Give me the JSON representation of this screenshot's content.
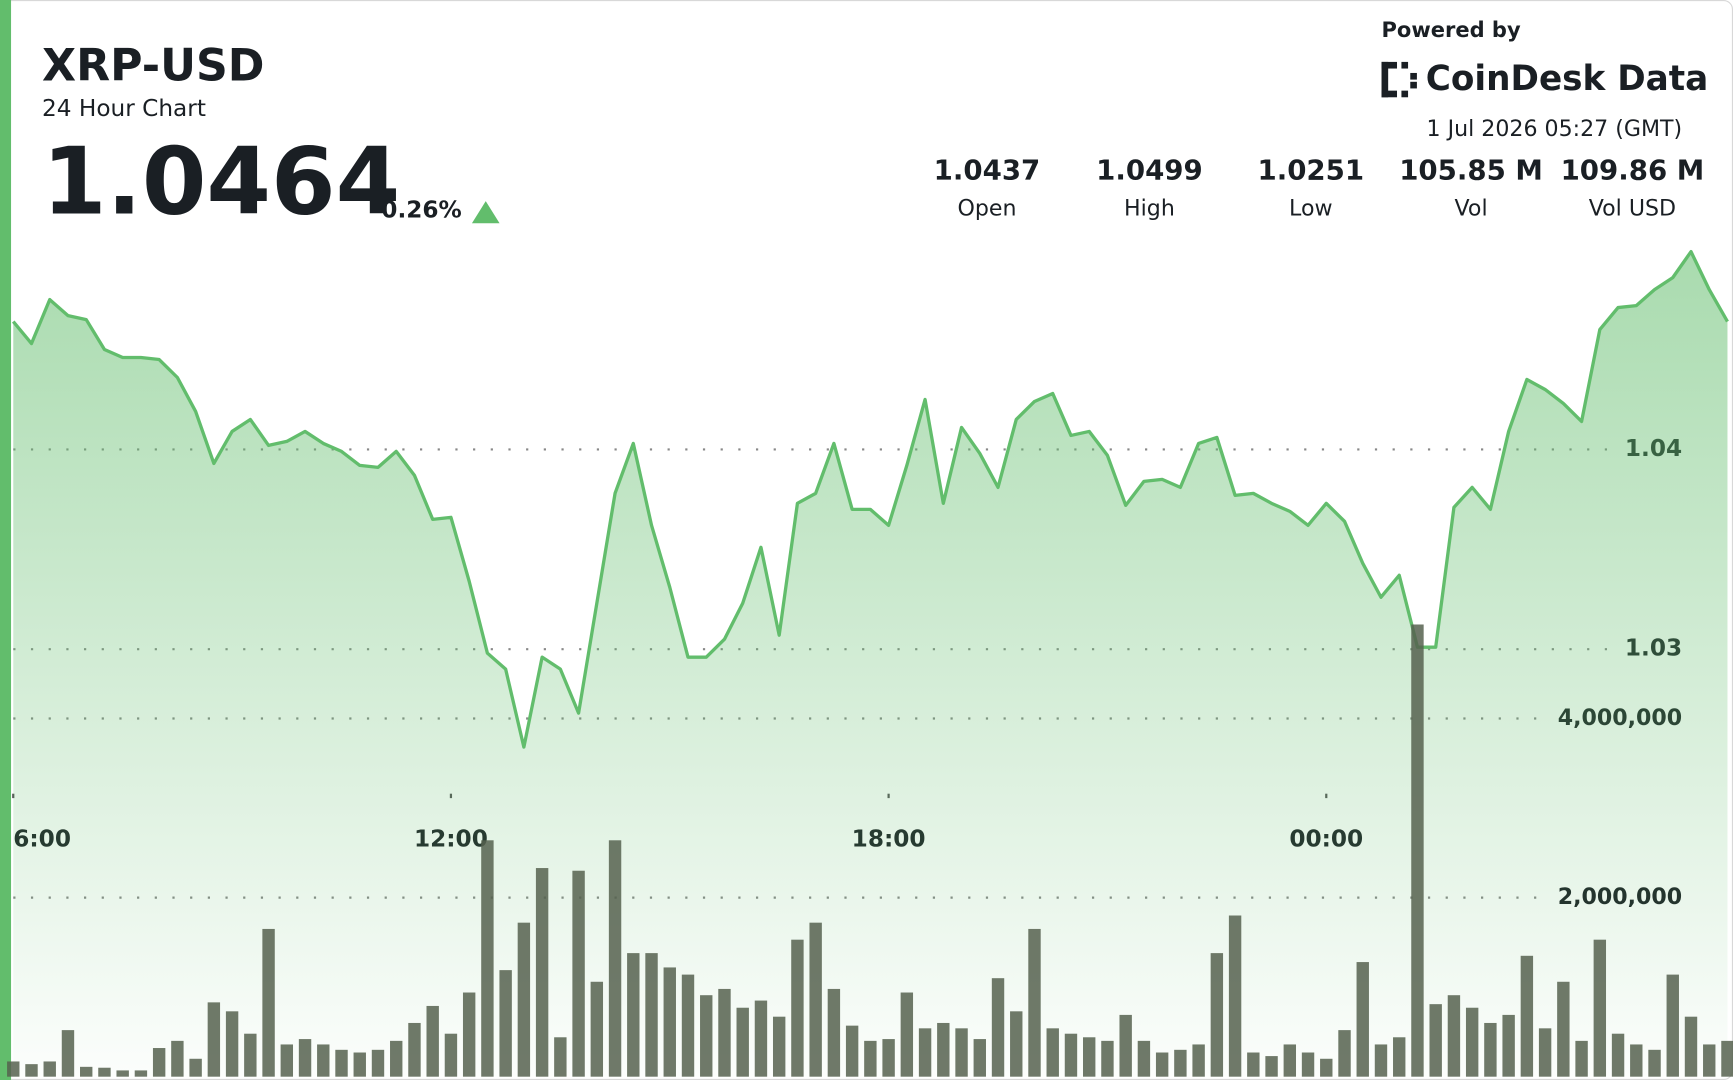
{
  "header": {
    "symbol": "XRP-USD",
    "subtitle": "24 Hour Chart",
    "price": "1.0464",
    "change": "0.26%",
    "powered_by": "Powered by",
    "brand": "CoinDesk Data",
    "timestamp": "1 Jul 2026 05:27 (GMT)"
  },
  "stats": [
    {
      "value": "1.0437",
      "label": "Open"
    },
    {
      "value": "1.0499",
      "label": "High"
    },
    {
      "value": "1.0251",
      "label": "Low"
    },
    {
      "value": "105.85 M",
      "label": "Vol"
    },
    {
      "value": "109.86 M",
      "label": "Vol USD"
    }
  ],
  "chart_data": {
    "type": "line",
    "categories": [
      "6:00",
      null,
      null,
      null,
      null,
      null,
      null,
      null,
      null,
      null,
      null,
      null,
      null,
      null,
      null,
      null,
      null,
      null,
      null,
      null,
      null,
      null,
      null,
      null,
      "12:00",
      null,
      null,
      null,
      null,
      null,
      null,
      null,
      null,
      null,
      null,
      null,
      null,
      null,
      null,
      null,
      null,
      null,
      null,
      null,
      null,
      null,
      null,
      null,
      "18:00",
      null,
      null,
      null,
      null,
      null,
      null,
      null,
      null,
      null,
      null,
      null,
      null,
      null,
      null,
      null,
      null,
      null,
      null,
      null,
      null,
      null,
      null,
      null,
      "00:00",
      null,
      null,
      null,
      null,
      null,
      null,
      null,
      null,
      null,
      null,
      null,
      null,
      null,
      null,
      null,
      null,
      null,
      null,
      null,
      null,
      null,
      null
    ],
    "series": [
      {
        "color": "#62bd6c",
        "values": [
          1.0464,
          1.0453,
          1.0475,
          1.0467,
          1.0465,
          1.045,
          1.0446,
          1.0446,
          1.0445,
          1.0436,
          1.0419,
          1.0393,
          1.0409,
          1.0415,
          1.0402,
          1.0404,
          1.0409,
          1.0403,
          1.0399,
          1.0392,
          1.0391,
          1.0399,
          1.0387,
          1.0365,
          1.0366,
          1.0334,
          1.0298,
          1.029,
          1.0251,
          1.0296,
          1.029,
          1.0268,
          1.0323,
          1.0378,
          1.0403,
          1.0362,
          1.0331,
          1.0296,
          1.0296,
          1.0305,
          1.0323,
          1.0351,
          1.0307,
          1.0373,
          1.0378,
          1.0403,
          1.037,
          1.037,
          1.0362,
          1.0392,
          1.0425,
          1.0373,
          1.0411,
          1.0398,
          1.0381,
          1.0415,
          1.0424,
          1.0428,
          1.0407,
          1.0409,
          1.0397,
          1.0372,
          1.0384,
          1.0385,
          1.0381,
          1.0403,
          1.0406,
          1.0377,
          1.0378,
          1.0373,
          1.0369,
          1.0362,
          1.0373,
          1.0364,
          1.0343,
          1.0326,
          1.0337,
          1.0301,
          1.0301,
          1.0371,
          1.0381,
          1.037,
          1.0409,
          1.0435,
          1.043,
          1.0423,
          1.0414,
          1.046,
          1.0471,
          1.0472,
          1.048,
          1.0486,
          1.0499,
          1.048,
          1.0464
        ]
      },
      {
        "type": "bar",
        "axis": "y2",
        "color": "#56614f",
        "values": [
          170000,
          140000,
          170000,
          520000,
          110000,
          100000,
          70000,
          70000,
          320000,
          400000,
          200000,
          830000,
          730000,
          480000,
          1650000,
          360000,
          420000,
          360000,
          300000,
          270000,
          300000,
          400000,
          600000,
          790000,
          480000,
          940000,
          2640000,
          1190000,
          1720000,
          2330000,
          440000,
          2300000,
          1060000,
          2640000,
          1380000,
          1380000,
          1220000,
          1140000,
          910000,
          980000,
          770000,
          850000,
          670000,
          1530000,
          1720000,
          980000,
          570000,
          400000,
          420000,
          940000,
          540000,
          600000,
          540000,
          420000,
          1100000,
          730000,
          1650000,
          540000,
          480000,
          440000,
          400000,
          690000,
          400000,
          270000,
          300000,
          360000,
          1380000,
          1800000,
          270000,
          230000,
          360000,
          270000,
          200000,
          520000,
          1280000,
          360000,
          440000,
          5050000,
          810000,
          910000,
          770000,
          600000,
          690000,
          1350000,
          540000,
          1060000,
          400000,
          1530000,
          480000,
          360000,
          300000,
          1140000,
          670000,
          360000,
          400000
        ]
      }
    ],
    "ylim": [
      1.0086,
      1.0506
    ],
    "yticks": [
      1.03,
      1.04
    ],
    "y2lim": [
      0,
      9370000
    ],
    "y2ticks": [
      {
        "value": 2000000,
        "label": "2,000,000"
      },
      {
        "value": 4000000,
        "label": "4,000,000"
      }
    ],
    "grid": true
  }
}
